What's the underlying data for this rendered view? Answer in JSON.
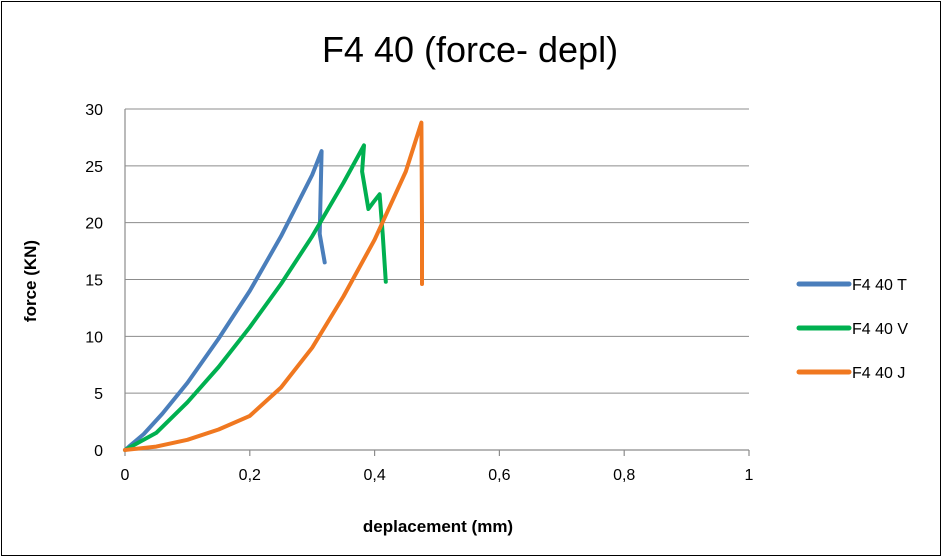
{
  "chart_data": {
    "type": "line",
    "title": "F4 40 (force- depl)",
    "xlabel": "deplacement (mm)",
    "ylabel": "force (KN)",
    "xlim": [
      0,
      1
    ],
    "ylim": [
      0,
      30
    ],
    "x_ticks": [
      "0",
      "0,2",
      "0,4",
      "0,6",
      "0,8",
      "1"
    ],
    "y_ticks": [
      "0",
      "5",
      "10",
      "15",
      "20",
      "25",
      "30"
    ],
    "grid": "horizontal",
    "legend_position": "right",
    "series": [
      {
        "name": "F4 40 T",
        "color": "#4a7ebb",
        "x": [
          0,
          0.03,
          0.06,
          0.1,
          0.15,
          0.2,
          0.25,
          0.3,
          0.315,
          0.312,
          0.32
        ],
        "y": [
          0,
          1.4,
          3.2,
          5.9,
          9.8,
          14,
          18.8,
          24.2,
          26.3,
          19,
          16.5
        ]
      },
      {
        "name": "F4 40 V",
        "color": "#00b050",
        "x": [
          0,
          0.05,
          0.1,
          0.15,
          0.2,
          0.25,
          0.3,
          0.35,
          0.383,
          0.38,
          0.39,
          0.398,
          0.408,
          0.413,
          0.418
        ],
        "y": [
          0,
          1.5,
          4.2,
          7.3,
          10.8,
          14.6,
          18.8,
          23.5,
          26.8,
          24.5,
          21.2,
          21.8,
          22.5,
          19,
          14.8
        ]
      },
      {
        "name": "F4 40 J",
        "color": "#f07820",
        "x": [
          0,
          0.05,
          0.1,
          0.15,
          0.2,
          0.25,
          0.3,
          0.35,
          0.4,
          0.45,
          0.475,
          0.476,
          0.476
        ],
        "y": [
          0,
          0.3,
          0.9,
          1.8,
          3,
          5.5,
          9,
          13.5,
          18.5,
          24.5,
          28.8,
          20,
          14.6
        ]
      }
    ]
  }
}
